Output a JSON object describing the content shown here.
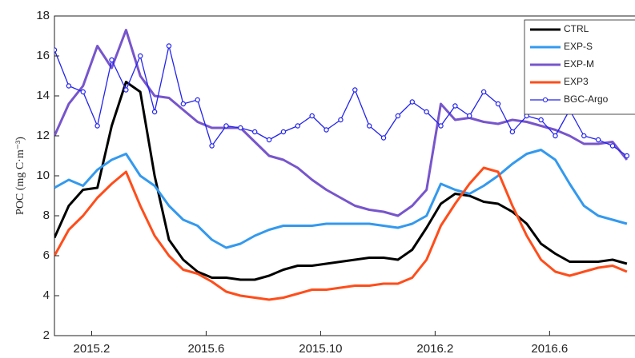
{
  "chart_data": {
    "type": "line",
    "y_label": "POC (mg C·m⁻³)",
    "x": [
      0.7,
      1.2,
      1.7,
      2.2,
      2.7,
      3.2,
      3.7,
      4.2,
      4.7,
      5.2,
      5.7,
      6.2,
      6.7,
      7.2,
      7.7,
      8.2,
      8.7,
      9.2,
      9.7,
      10.2,
      10.7,
      11.2,
      11.7,
      12.2,
      12.7,
      13.2,
      13.7,
      14.2,
      14.7,
      15.2,
      15.7,
      16.2,
      16.7,
      17.2,
      17.7,
      18.2,
      18.7,
      19.2,
      19.7,
      20.2,
      20.7
    ],
    "xlim": [
      0.7,
      20.9
    ],
    "xticks": [
      {
        "value": 2,
        "label": "2015.2"
      },
      {
        "value": 6,
        "label": "2015.6"
      },
      {
        "value": 10,
        "label": "2015.10"
      },
      {
        "value": 14,
        "label": "2016.2"
      },
      {
        "value": 18,
        "label": "2016.6"
      }
    ],
    "ylim": [
      2,
      18
    ],
    "yticks": [
      2,
      4,
      6,
      8,
      10,
      12,
      14,
      16,
      18
    ],
    "grid": false,
    "legend": "upper right",
    "series": [
      {
        "name": "CTRL",
        "color": "#000000",
        "markers": false,
        "values": [
          6.9,
          8.5,
          9.3,
          9.4,
          12.5,
          14.7,
          14.2,
          10.0,
          6.8,
          5.8,
          5.2,
          4.9,
          4.9,
          4.8,
          4.8,
          5.0,
          5.3,
          5.5,
          5.5,
          5.6,
          5.7,
          5.8,
          5.9,
          5.9,
          5.8,
          6.3,
          7.4,
          8.6,
          9.1,
          9.0,
          8.7,
          8.6,
          8.2,
          7.6,
          6.6,
          6.1,
          5.7,
          5.7,
          5.7,
          5.8,
          5.6
        ]
      },
      {
        "name": "EXP-S",
        "color": "#3399ee",
        "markers": false,
        "values": [
          9.4,
          9.8,
          9.5,
          10.3,
          10.8,
          11.1,
          10.0,
          9.5,
          8.5,
          7.8,
          7.5,
          6.8,
          6.4,
          6.6,
          7.0,
          7.3,
          7.5,
          7.5,
          7.5,
          7.6,
          7.6,
          7.6,
          7.6,
          7.5,
          7.4,
          7.6,
          8.0,
          9.6,
          9.3,
          9.1,
          9.5,
          10.0,
          10.6,
          11.1,
          11.3,
          10.8,
          9.6,
          8.5,
          8.0,
          7.8,
          7.6
        ]
      },
      {
        "name": "EXP-M",
        "color": "#7755cc",
        "markers": false,
        "values": [
          12.0,
          13.6,
          14.5,
          16.5,
          15.4,
          17.3,
          15.0,
          14.0,
          13.9,
          13.3,
          12.7,
          12.4,
          12.4,
          12.4,
          11.7,
          11.0,
          10.8,
          10.4,
          9.8,
          9.3,
          8.9,
          8.5,
          8.3,
          8.2,
          8.0,
          8.5,
          9.3,
          13.6,
          12.8,
          12.9,
          12.7,
          12.6,
          12.8,
          12.7,
          12.5,
          12.3,
          12.0,
          11.6,
          11.6,
          11.7,
          10.8
        ]
      },
      {
        "name": "EXP3",
        "color": "#ff4d1a",
        "markers": false,
        "values": [
          6.0,
          7.3,
          8.0,
          8.9,
          9.6,
          10.2,
          8.5,
          7.0,
          6.0,
          5.3,
          5.1,
          4.7,
          4.2,
          4.0,
          3.9,
          3.8,
          3.9,
          4.1,
          4.3,
          4.3,
          4.4,
          4.5,
          4.5,
          4.6,
          4.6,
          4.9,
          5.8,
          7.5,
          8.6,
          9.6,
          10.4,
          10.2,
          8.5,
          7.0,
          5.8,
          5.2,
          5.0,
          5.2,
          5.4,
          5.5,
          5.2
        ]
      },
      {
        "name": "BGC-Argo",
        "color": "#2222ee",
        "markers": true,
        "values": [
          16.3,
          14.5,
          14.2,
          12.5,
          15.8,
          14.3,
          16.0,
          13.2,
          16.5,
          13.6,
          13.8,
          11.5,
          12.5,
          12.4,
          12.2,
          11.8,
          12.2,
          12.5,
          13.0,
          12.3,
          12.8,
          14.3,
          12.5,
          11.9,
          13.0,
          13.7,
          13.2,
          12.5,
          13.5,
          13.0,
          14.2,
          13.6,
          12.2,
          13.0,
          12.8,
          12.0,
          13.3,
          12.0,
          11.8,
          11.5,
          11.0
        ]
      }
    ]
  }
}
